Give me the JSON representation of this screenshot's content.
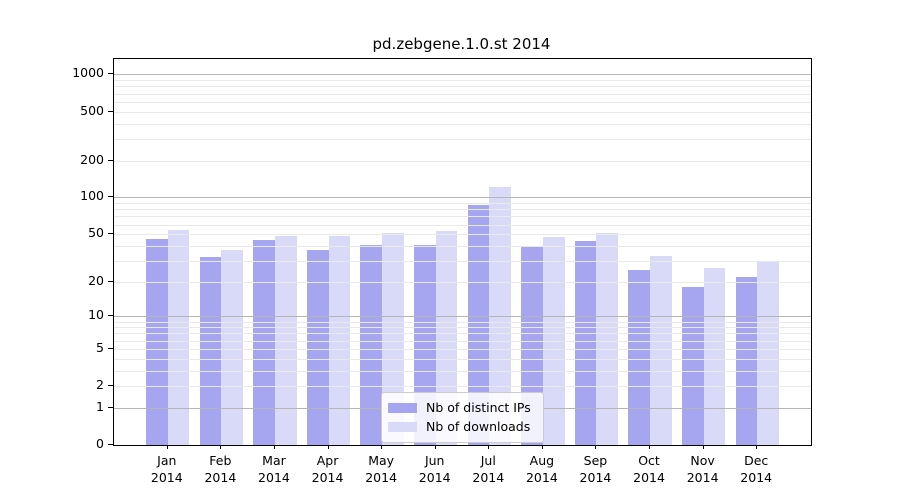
{
  "chart_data": {
    "type": "bar",
    "title": "pd.zebgene.1.0.st 2014",
    "year_label": "2014",
    "categories": [
      "Jan",
      "Feb",
      "Mar",
      "Apr",
      "May",
      "Jun",
      "Jul",
      "Aug",
      "Sep",
      "Oct",
      "Nov",
      "Dec"
    ],
    "series": [
      {
        "name": "Nb of distinct IPs",
        "color": "#a5a5f0",
        "values": [
          46,
          32,
          45,
          37,
          41,
          41,
          87,
          39,
          44,
          25,
          18,
          22
        ]
      },
      {
        "name": "Nb of downloads",
        "color": "#d9d9f8",
        "values": [
          54,
          37,
          48,
          48,
          51,
          53,
          122,
          47,
          51,
          33,
          26,
          30
        ]
      }
    ],
    "scale": "log1p",
    "yticks": [
      0,
      1,
      2,
      5,
      10,
      20,
      50,
      100,
      200,
      500,
      1000
    ],
    "ylim": [
      0,
      1335
    ],
    "grid": true,
    "grid_major_color": "#b5b5b5",
    "grid_minor_color": "#e9e9e9",
    "legend_position": "lower center",
    "axis_color": "#000000"
  }
}
